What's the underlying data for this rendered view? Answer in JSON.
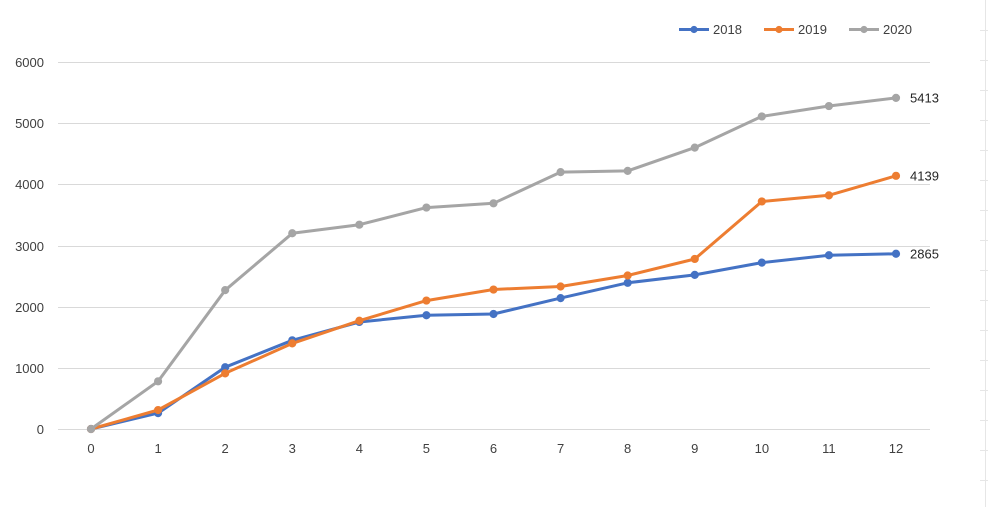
{
  "chart_data": {
    "type": "line",
    "title": "",
    "xlabel": "",
    "ylabel": "",
    "x": [
      0,
      1,
      2,
      3,
      4,
      5,
      6,
      7,
      8,
      9,
      10,
      11,
      12
    ],
    "x_tick_labels": [
      "0",
      "1",
      "2",
      "3",
      "4",
      "5",
      "6",
      "7",
      "8",
      "9",
      "10",
      "11",
      "12"
    ],
    "y_ticks": [
      0,
      1000,
      2000,
      3000,
      4000,
      5000,
      6000
    ],
    "y_tick_labels": [
      "0",
      "1000",
      "2000",
      "3000",
      "4000",
      "5000",
      "6000"
    ],
    "ylim": [
      0,
      6000
    ],
    "xlim": [
      0,
      12
    ],
    "grid": "horizontal",
    "legend_position": "top-right",
    "series": [
      {
        "name": "2018",
        "color": "#4472C4",
        "values": [
          0,
          260,
          1010,
          1450,
          1750,
          1860,
          1880,
          2140,
          2390,
          2520,
          2720,
          2840,
          2865
        ],
        "end_label": "2865"
      },
      {
        "name": "2019",
        "color": "#ED7D31",
        "values": [
          0,
          310,
          910,
          1400,
          1770,
          2100,
          2280,
          2330,
          2510,
          2780,
          3720,
          3820,
          4139
        ],
        "end_label": "4139"
      },
      {
        "name": "2020",
        "color": "#A5A5A5",
        "values": [
          0,
          780,
          2270,
          3200,
          3340,
          3620,
          3690,
          4200,
          4220,
          4600,
          5110,
          5280,
          5413
        ],
        "end_label": "5413"
      }
    ]
  }
}
